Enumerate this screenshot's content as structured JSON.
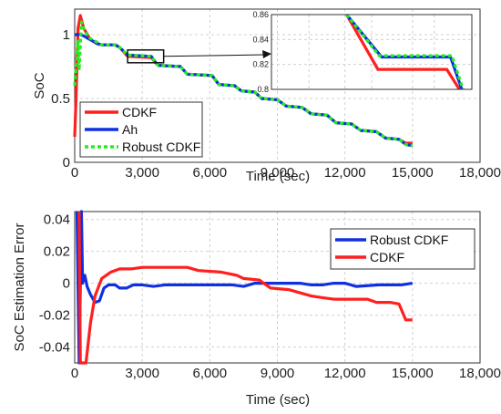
{
  "chart_data": [
    {
      "type": "line",
      "title": "",
      "xlabel": "Time (sec)",
      "ylabel": "SoC",
      "xlim": [
        0,
        18000
      ],
      "ylim": [
        0,
        1.2
      ],
      "xticks": [
        0,
        3000,
        6000,
        9000,
        12000,
        15000,
        18000
      ],
      "xtick_labels": [
        "0",
        "3,000",
        "6,000",
        "9,000",
        "12,000",
        "15,000",
        "18,000"
      ],
      "yticks": [
        0,
        0.5,
        1
      ],
      "ytick_labels": [
        "0",
        "0.5",
        "1"
      ],
      "grid": true,
      "legend_position": "bottom-left",
      "series": [
        {
          "name": "CDKF",
          "color": "#ff1f1f",
          "style": "solid",
          "points": [
            [
              0,
              0.2
            ],
            [
              60,
              0.5
            ],
            [
              150,
              1.05
            ],
            [
              250,
              1.15
            ],
            [
              400,
              1.05
            ],
            [
              700,
              0.96
            ],
            [
              1000,
              0.93
            ],
            [
              1200,
              0.92
            ],
            [
              1800,
              0.92
            ],
            [
              2000,
              0.9
            ],
            [
              2350,
              0.83
            ],
            [
              3400,
              0.82
            ],
            [
              3600,
              0.78
            ],
            [
              3700,
              0.76
            ],
            [
              4700,
              0.75
            ],
            [
              5000,
              0.69
            ],
            [
              6100,
              0.68
            ],
            [
              6400,
              0.61
            ],
            [
              7100,
              0.6
            ],
            [
              7400,
              0.56
            ],
            [
              8000,
              0.55
            ],
            [
              8300,
              0.5
            ],
            [
              9000,
              0.49
            ],
            [
              9400,
              0.44
            ],
            [
              10100,
              0.43
            ],
            [
              10500,
              0.38
            ],
            [
              11200,
              0.37
            ],
            [
              11600,
              0.31
            ],
            [
              12300,
              0.3
            ],
            [
              12700,
              0.25
            ],
            [
              13400,
              0.24
            ],
            [
              13800,
              0.19
            ],
            [
              14400,
              0.18
            ],
            [
              14700,
              0.15
            ],
            [
              15000,
              0.15
            ]
          ]
        },
        {
          "name": "Ah",
          "color": "#1030e0",
          "style": "solid",
          "points": [
            [
              0,
              1.0
            ],
            [
              100,
              1.0
            ],
            [
              250,
              1.0
            ],
            [
              400,
              0.99
            ],
            [
              600,
              0.97
            ],
            [
              800,
              0.95
            ],
            [
              1000,
              0.93
            ],
            [
              1200,
              0.92
            ],
            [
              1800,
              0.92
            ],
            [
              2000,
              0.9
            ],
            [
              2350,
              0.84
            ],
            [
              3400,
              0.83
            ],
            [
              3600,
              0.78
            ],
            [
              3700,
              0.76
            ],
            [
              4700,
              0.75
            ],
            [
              5000,
              0.69
            ],
            [
              6100,
              0.68
            ],
            [
              6400,
              0.61
            ],
            [
              7100,
              0.6
            ],
            [
              7400,
              0.56
            ],
            [
              8000,
              0.55
            ],
            [
              8300,
              0.5
            ],
            [
              9000,
              0.49
            ],
            [
              9400,
              0.44
            ],
            [
              10100,
              0.43
            ],
            [
              10500,
              0.38
            ],
            [
              11200,
              0.37
            ],
            [
              11600,
              0.31
            ],
            [
              12300,
              0.3
            ],
            [
              12700,
              0.25
            ],
            [
              13400,
              0.24
            ],
            [
              13800,
              0.19
            ],
            [
              14400,
              0.18
            ],
            [
              14700,
              0.14
            ],
            [
              15000,
              0.13
            ]
          ]
        },
        {
          "name": "Robust CDKF",
          "color": "#22ee22",
          "style": "dotted",
          "points": [
            [
              0,
              0.6
            ],
            [
              60,
              0.75
            ],
            [
              150,
              0.95
            ],
            [
              200,
              0.72
            ],
            [
              300,
              1.1
            ],
            [
              400,
              1.05
            ],
            [
              600,
              0.98
            ],
            [
              1000,
              0.94
            ],
            [
              1200,
              0.92
            ],
            [
              1800,
              0.92
            ],
            [
              2000,
              0.9
            ],
            [
              2350,
              0.84
            ],
            [
              3400,
              0.83
            ],
            [
              3600,
              0.78
            ],
            [
              3700,
              0.76
            ],
            [
              4700,
              0.75
            ],
            [
              5000,
              0.69
            ],
            [
              6100,
              0.68
            ],
            [
              6400,
              0.61
            ],
            [
              7100,
              0.6
            ],
            [
              7400,
              0.56
            ],
            [
              8000,
              0.55
            ],
            [
              8300,
              0.5
            ],
            [
              9000,
              0.49
            ],
            [
              9400,
              0.44
            ],
            [
              10100,
              0.43
            ],
            [
              10500,
              0.38
            ],
            [
              11200,
              0.37
            ],
            [
              11600,
              0.31
            ],
            [
              12300,
              0.3
            ],
            [
              12700,
              0.25
            ],
            [
              13400,
              0.24
            ],
            [
              13800,
              0.19
            ],
            [
              14400,
              0.18
            ],
            [
              14700,
              0.14
            ],
            [
              15000,
              0.13
            ]
          ]
        }
      ],
      "annotations": [
        {
          "type": "zoom-inset",
          "source_xlim": [
            2350,
            3950
          ],
          "source_ylim": [
            0.78,
            0.88
          ],
          "xlim": [
            2300,
            3900
          ],
          "ylim": [
            0.8,
            0.86
          ],
          "yticks": [
            0.8,
            0.82,
            0.84,
            0.86
          ],
          "ytick_labels": [
            "0.8",
            "0.82",
            "0.84",
            "0.86"
          ],
          "series": [
            {
              "name": "CDKF",
              "color": "#ff1f1f",
              "points": [
                [
                  2900,
                  0.86
                ],
                [
                  3150,
                  0.816
                ],
                [
                  3700,
                  0.816
                ],
                [
                  3800,
                  0.8
                ]
              ]
            },
            {
              "name": "Ah",
              "color": "#1030e0",
              "points": [
                [
                  2900,
                  0.86
                ],
                [
                  3180,
                  0.826
                ],
                [
                  3730,
                  0.826
                ],
                [
                  3820,
                  0.8
                ]
              ]
            },
            {
              "name": "Robust CDKF",
              "color": "#22ee22",
              "points": [
                [
                  2900,
                  0.86
                ],
                [
                  3160,
                  0.827
                ],
                [
                  3740,
                  0.827
                ],
                [
                  3830,
                  0.8
                ]
              ]
            }
          ]
        }
      ]
    },
    {
      "type": "line",
      "title": "",
      "xlabel": "Time (sec)",
      "ylabel": "SoC Estimation Error",
      "xlim": [
        0,
        18000
      ],
      "ylim": [
        -0.05,
        0.045
      ],
      "xticks": [
        0,
        3000,
        6000,
        9000,
        12000,
        15000,
        18000
      ],
      "xtick_labels": [
        "0",
        "3,000",
        "6,000",
        "9,000",
        "12,000",
        "15,000",
        "18,000"
      ],
      "yticks": [
        -0.04,
        -0.02,
        0,
        0.02,
        0.04
      ],
      "ytick_labels": [
        "-0.04",
        "-0.02",
        "0",
        "0.02",
        "0.04"
      ],
      "grid": true,
      "legend_position": "top-right",
      "series": [
        {
          "name": "Robust CDKF",
          "color": "#1030e0",
          "points": [
            [
              100,
              0.045
            ],
            [
              200,
              -0.05
            ],
            [
              300,
              0.045
            ],
            [
              350,
              0.0
            ],
            [
              450,
              0.005
            ],
            [
              550,
              -0.002
            ],
            [
              700,
              -0.007
            ],
            [
              900,
              -0.012
            ],
            [
              1100,
              -0.011
            ],
            [
              1300,
              -0.003
            ],
            [
              1500,
              -0.001
            ],
            [
              1800,
              -0.001
            ],
            [
              2000,
              -0.003
            ],
            [
              2300,
              -0.003
            ],
            [
              2600,
              -0.001
            ],
            [
              3000,
              -0.001
            ],
            [
              3500,
              -0.002
            ],
            [
              4000,
              -0.001
            ],
            [
              5000,
              -0.001
            ],
            [
              6000,
              -0.001
            ],
            [
              7000,
              -0.001
            ],
            [
              7500,
              -0.002
            ],
            [
              8000,
              0.0
            ],
            [
              9000,
              0.0
            ],
            [
              10000,
              0.0
            ],
            [
              10500,
              -0.001
            ],
            [
              11000,
              -0.001
            ],
            [
              11500,
              0.0
            ],
            [
              12000,
              0.0
            ],
            [
              12500,
              -0.002
            ],
            [
              13500,
              -0.001
            ],
            [
              14500,
              -0.001
            ],
            [
              15000,
              0.0
            ]
          ]
        },
        {
          "name": "CDKF",
          "color": "#ff1f1f",
          "points": [
            [
              200,
              0.045
            ],
            [
              250,
              -0.05
            ],
            [
              500,
              -0.05
            ],
            [
              700,
              -0.025
            ],
            [
              900,
              -0.008
            ],
            [
              1200,
              0.003
            ],
            [
              1600,
              0.007
            ],
            [
              2000,
              0.009
            ],
            [
              2500,
              0.009
            ],
            [
              3000,
              0.01
            ],
            [
              3500,
              0.01
            ],
            [
              4500,
              0.01
            ],
            [
              5000,
              0.01
            ],
            [
              5500,
              0.008
            ],
            [
              6500,
              0.007
            ],
            [
              7200,
              0.005
            ],
            [
              7500,
              0.003
            ],
            [
              8200,
              0.002
            ],
            [
              8500,
              -0.001
            ],
            [
              8700,
              -0.003
            ],
            [
              9500,
              -0.004
            ],
            [
              10000,
              -0.006
            ],
            [
              10500,
              -0.008
            ],
            [
              11000,
              -0.009
            ],
            [
              11500,
              -0.01
            ],
            [
              12500,
              -0.01
            ],
            [
              13000,
              -0.01
            ],
            [
              13400,
              -0.012
            ],
            [
              14000,
              -0.012
            ],
            [
              14400,
              -0.013
            ],
            [
              14700,
              -0.023
            ],
            [
              15000,
              -0.023
            ]
          ]
        }
      ]
    }
  ]
}
